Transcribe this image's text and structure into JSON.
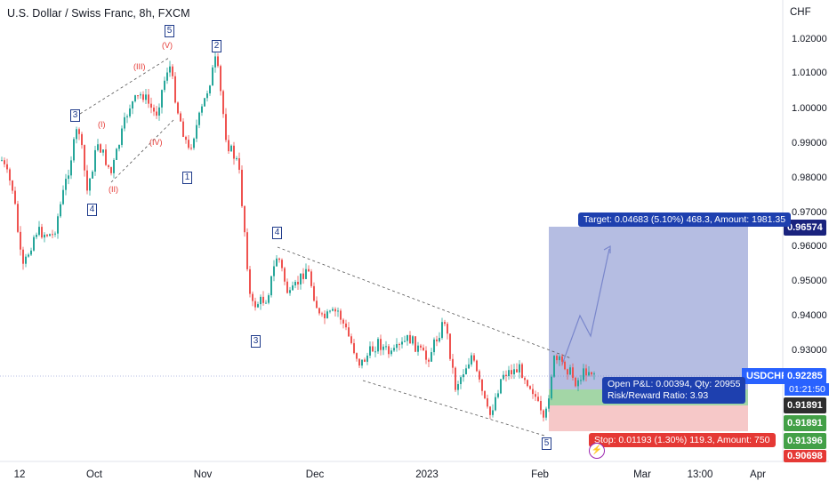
{
  "header": {
    "title": "U.S. Dollar / Swiss Franc, 8h, FXCM",
    "currency": "CHF"
  },
  "price_axis": {
    "ticks": [
      "1.02000",
      "1.01000",
      "1.00000",
      "0.99000",
      "0.98000",
      "0.97000",
      "0.96000",
      "0.95000",
      "0.94000",
      "0.93000"
    ],
    "tags": {
      "target": "0.96574",
      "current": "0.92285",
      "countdown": "01:21:50",
      "entry": "0.91891",
      "entry2": "0.91891",
      "low": "0.91396",
      "stop": "0.90698"
    },
    "symbol": "USDCHF"
  },
  "time_axis": {
    "ticks": [
      "12",
      "Oct",
      "Nov",
      "Dec",
      "2023",
      "Feb",
      "Mar",
      "13:00",
      "Apr"
    ]
  },
  "position": {
    "target_label": "Target: 0.04683 (5.10%) 468.3, Amount: 1981.35",
    "pnl_label": "Open P&L: 0.00394, Qty: 20955",
    "rr_label": "Risk/Reward Ratio: 3.93",
    "stop_label": "Stop: 0.01193 (1.30%) 119.3, Amount: 750"
  },
  "waves": {
    "numbers": [
      "5",
      "2",
      "3",
      "4",
      "1",
      "4",
      "3",
      "5"
    ],
    "roman": [
      "(V)",
      "(III)",
      "(I)",
      "(II)",
      "(IV)"
    ]
  },
  "colors": {
    "up": "#26a69a",
    "down": "#ef5350",
    "accent": "#2962ff"
  },
  "icons": {
    "logo": "tradingview-flash-icon"
  }
}
